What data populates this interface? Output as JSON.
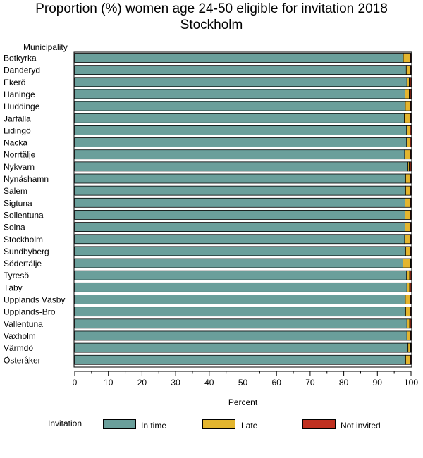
{
  "title_line1": "Proportion (%) women age 24-50 eligible for invitation 2018",
  "title_line2": "Stockholm",
  "legend_title": "Invitation",
  "colors": {
    "in_time": "#6a9f9b",
    "late": "#e3b52e",
    "not_invited": "#c03020"
  },
  "chart_data": {
    "type": "bar",
    "orientation": "horizontal",
    "stacked": true,
    "ylabel": "Municipality",
    "xlabel": "Percent",
    "xlim": [
      0,
      100
    ],
    "xticks": [
      0,
      10,
      20,
      30,
      40,
      50,
      60,
      70,
      80,
      90,
      100
    ],
    "categories": [
      "Botkyrka",
      "Danderyd",
      "Ekerö",
      "Haninge",
      "Huddinge",
      "Järfälla",
      "Lidingö",
      "Nacka",
      "Norrtälje",
      "Nykvarn",
      "Nynäshamn",
      "Salem",
      "Sigtuna",
      "Sollentuna",
      "Solna",
      "Stockholm",
      "Sundbyberg",
      "Södertälje",
      "Tyresö",
      "Täby",
      "Upplands Väsby",
      "Upplands-Bro",
      "Vallentuna",
      "Vaxholm",
      "Värmdö",
      "Österåker"
    ],
    "series": [
      {
        "name": "In time",
        "values": [
          97.7,
          98.6,
          98.8,
          98.2,
          98.3,
          98.0,
          98.7,
          98.7,
          98.1,
          99.1,
          98.4,
          98.4,
          98.2,
          98.2,
          98.2,
          98.1,
          98.4,
          97.6,
          98.7,
          98.8,
          98.3,
          98.4,
          98.8,
          98.8,
          99.1,
          98.4
        ]
      },
      {
        "name": "Late",
        "values": [
          2.1,
          1.2,
          0.7,
          1.3,
          1.5,
          1.8,
          1.0,
          1.0,
          1.7,
          0.4,
          1.4,
          1.4,
          1.6,
          1.6,
          1.6,
          1.7,
          1.4,
          2.3,
          0.9,
          0.8,
          1.5,
          1.4,
          0.8,
          1.0,
          0.8,
          1.4
        ]
      },
      {
        "name": "Not invited",
        "values": [
          0.2,
          0.2,
          0.5,
          0.5,
          0.2,
          0.2,
          0.3,
          0.3,
          0.2,
          0.5,
          0.2,
          0.2,
          0.2,
          0.2,
          0.2,
          0.2,
          0.2,
          0.1,
          0.4,
          0.4,
          0.2,
          0.2,
          0.4,
          0.2,
          0.1,
          0.2
        ]
      }
    ]
  }
}
